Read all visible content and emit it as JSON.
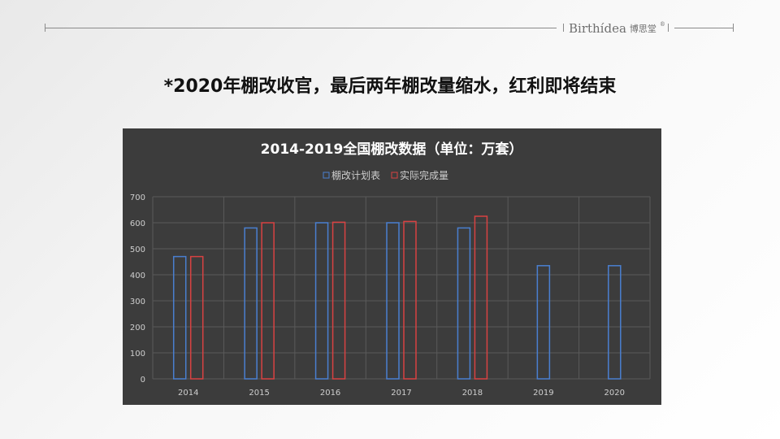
{
  "header": {
    "brand_latin": "Birthídea",
    "brand_cn": "博思堂",
    "brand_mark": "®"
  },
  "slide_title": "*2020年棚改收官，最后两年棚改量缩水，红利即将结束",
  "colors": {
    "plan": "#4a7fd0",
    "actual": "#d84242",
    "panel_bg": "#3c3c3c",
    "grid": "#5a5a5a",
    "text": "#cfcfcf",
    "title": "#ffffff"
  },
  "chart_data": {
    "type": "bar",
    "title": "2014-2019全国棚改数据（单位：万套）",
    "categories": [
      "2014",
      "2015",
      "2016",
      "2017",
      "2018",
      "2019",
      "2020"
    ],
    "series": [
      {
        "name": "棚改计划表",
        "values": [
          470,
          580,
          600,
          600,
          580,
          435,
          435
        ]
      },
      {
        "name": "实际完成量",
        "values": [
          470,
          600,
          602,
          605,
          625,
          null,
          null
        ]
      }
    ],
    "yticks": [
      0,
      100,
      200,
      300,
      400,
      500,
      600,
      700
    ],
    "ylim": [
      0,
      700
    ],
    "grid": true,
    "legend": "top-center"
  }
}
